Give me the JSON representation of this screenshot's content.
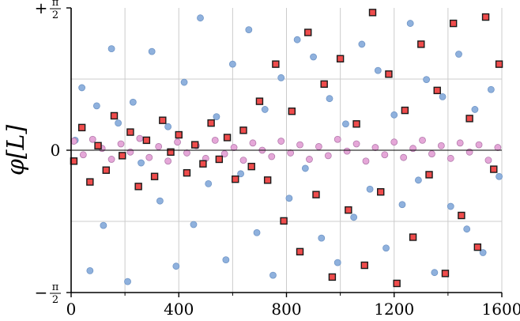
{
  "chart_data": {
    "type": "scatter",
    "title": "",
    "xlabel": "",
    "ylabel": "φ[L]",
    "xlim": [
      0,
      1600
    ],
    "ylim": [
      -1.5708,
      1.5708
    ],
    "grid": true,
    "x_ticks": [
      {
        "value": 0,
        "label": "0"
      },
      {
        "value": 400,
        "label": "400"
      },
      {
        "value": 800,
        "label": "800"
      },
      {
        "value": 1200,
        "label": "1200"
      },
      {
        "value": 1600,
        "label": "1600"
      }
    ],
    "y_ticks": [
      {
        "value": 1.5708,
        "sign": "+",
        "num": "π",
        "den": "2"
      },
      {
        "value": 0,
        "sign": "",
        "num": "0",
        "den": ""
      },
      {
        "value": -1.5708,
        "sign": "−",
        "num": "π",
        "den": "2"
      }
    ],
    "colors": {
      "blue": "#8fb1dd",
      "blue_edge": "#6f95c6",
      "pink": "#e5a7d8",
      "pink_edge": "#b27aab",
      "red": "#ef4c4c",
      "red_edge": "#1a1a1a",
      "grid": "#cccccc"
    },
    "series": [
      {
        "marker": "circle-blue",
        "points": [
          [
            15,
            0.11
          ],
          [
            40,
            0.69
          ],
          [
            70,
            -1.33
          ],
          [
            95,
            0.49
          ],
          [
            120,
            -0.83
          ],
          [
            150,
            1.12
          ],
          [
            175,
            0.3
          ],
          [
            210,
            -1.45
          ],
          [
            230,
            0.53
          ],
          [
            260,
            -0.14
          ],
          [
            300,
            1.09
          ],
          [
            330,
            -0.56
          ],
          [
            360,
            0.26
          ],
          [
            390,
            -1.28
          ],
          [
            420,
            0.75
          ],
          [
            455,
            -0.82
          ],
          [
            480,
            1.46
          ],
          [
            510,
            -0.37
          ],
          [
            540,
            0.37
          ],
          [
            575,
            -1.21
          ],
          [
            600,
            0.95
          ],
          [
            630,
            -0.26
          ],
          [
            660,
            1.33
          ],
          [
            690,
            -0.91
          ],
          [
            720,
            0.45
          ],
          [
            750,
            -1.38
          ],
          [
            780,
            0.8
          ],
          [
            810,
            -0.53
          ],
          [
            840,
            1.22
          ],
          [
            870,
            -0.2
          ],
          [
            900,
            1.03
          ],
          [
            930,
            -0.97
          ],
          [
            960,
            0.57
          ],
          [
            990,
            -1.24
          ],
          [
            1020,
            0.29
          ],
          [
            1050,
            -0.74
          ],
          [
            1080,
            1.17
          ],
          [
            1110,
            -0.43
          ],
          [
            1140,
            0.88
          ],
          [
            1170,
            -1.08
          ],
          [
            1200,
            0.39
          ],
          [
            1230,
            -0.6
          ],
          [
            1260,
            1.4
          ],
          [
            1290,
            -0.33
          ],
          [
            1320,
            0.78
          ],
          [
            1350,
            -1.35
          ],
          [
            1380,
            0.59
          ],
          [
            1410,
            -0.62
          ],
          [
            1440,
            1.06
          ],
          [
            1470,
            -0.87
          ],
          [
            1500,
            0.45
          ],
          [
            1530,
            -1.13
          ],
          [
            1560,
            0.67
          ],
          [
            1590,
            -0.29
          ]
        ]
      },
      {
        "marker": "circle-pink",
        "points": [
          [
            10,
            0.1
          ],
          [
            45,
            -0.05
          ],
          [
            80,
            0.12
          ],
          [
            115,
            0.02
          ],
          [
            150,
            -0.1
          ],
          [
            185,
            0.07
          ],
          [
            220,
            -0.02
          ],
          [
            255,
            0.13
          ],
          [
            290,
            -0.08
          ],
          [
            325,
            0.04
          ],
          [
            360,
            -0.12
          ],
          [
            395,
            0.09
          ],
          [
            430,
            -0.03
          ],
          [
            465,
            0.05
          ],
          [
            500,
            -0.09
          ],
          [
            535,
            0.11
          ],
          [
            570,
            -0.04
          ],
          [
            605,
            0.03
          ],
          [
            640,
            -0.11
          ],
          [
            675,
            0.08
          ],
          [
            710,
            0.0
          ],
          [
            745,
            -0.07
          ],
          [
            780,
            0.1
          ],
          [
            815,
            -0.03
          ],
          [
            850,
            0.06
          ],
          [
            885,
            -0.1
          ],
          [
            920,
            0.04
          ],
          [
            955,
            -0.06
          ],
          [
            990,
            0.12
          ],
          [
            1025,
            -0.01
          ],
          [
            1060,
            0.07
          ],
          [
            1095,
            -0.12
          ],
          [
            1130,
            0.03
          ],
          [
            1165,
            -0.05
          ],
          [
            1200,
            0.09
          ],
          [
            1235,
            -0.08
          ],
          [
            1270,
            0.02
          ],
          [
            1305,
            0.11
          ],
          [
            1340,
            -0.04
          ],
          [
            1375,
            0.05
          ],
          [
            1410,
            -0.09
          ],
          [
            1445,
            0.08
          ],
          [
            1480,
            -0.02
          ],
          [
            1515,
            0.06
          ],
          [
            1550,
            -0.11
          ],
          [
            1585,
            0.03
          ]
        ]
      },
      {
        "marker": "square-red",
        "points": [
          [
            10,
            -0.12
          ],
          [
            40,
            0.25
          ],
          [
            70,
            -0.35
          ],
          [
            100,
            0.05
          ],
          [
            130,
            -0.22
          ],
          [
            160,
            0.38
          ],
          [
            190,
            -0.06
          ],
          [
            220,
            0.2
          ],
          [
            250,
            -0.4
          ],
          [
            280,
            0.11
          ],
          [
            310,
            -0.29
          ],
          [
            340,
            0.33
          ],
          [
            370,
            -0.02
          ],
          [
            400,
            0.17
          ],
          [
            430,
            -0.25
          ],
          [
            460,
            0.06
          ],
          [
            490,
            -0.15
          ],
          [
            520,
            0.3
          ],
          [
            550,
            -0.1
          ],
          [
            580,
            0.14
          ],
          [
            610,
            -0.32
          ],
          [
            640,
            0.22
          ],
          [
            670,
            -0.18
          ],
          [
            700,
            0.54
          ],
          [
            730,
            -0.33
          ],
          [
            760,
            0.95
          ],
          [
            790,
            -0.78
          ],
          [
            820,
            0.43
          ],
          [
            850,
            -1.12
          ],
          [
            880,
            1.3
          ],
          [
            910,
            -0.49
          ],
          [
            940,
            0.73
          ],
          [
            970,
            -1.4
          ],
          [
            1000,
            1.01
          ],
          [
            1030,
            -0.66
          ],
          [
            1060,
            0.29
          ],
          [
            1090,
            -1.27
          ],
          [
            1120,
            1.52
          ],
          [
            1150,
            -0.46
          ],
          [
            1180,
            0.84
          ],
          [
            1210,
            -1.47
          ],
          [
            1240,
            0.44
          ],
          [
            1270,
            -0.96
          ],
          [
            1300,
            1.17
          ],
          [
            1330,
            -0.27
          ],
          [
            1360,
            0.66
          ],
          [
            1390,
            -1.36
          ],
          [
            1420,
            1.4
          ],
          [
            1450,
            -0.72
          ],
          [
            1480,
            0.35
          ],
          [
            1510,
            -1.07
          ],
          [
            1540,
            1.47
          ],
          [
            1570,
            -0.21
          ],
          [
            1590,
            0.95
          ]
        ]
      }
    ]
  }
}
